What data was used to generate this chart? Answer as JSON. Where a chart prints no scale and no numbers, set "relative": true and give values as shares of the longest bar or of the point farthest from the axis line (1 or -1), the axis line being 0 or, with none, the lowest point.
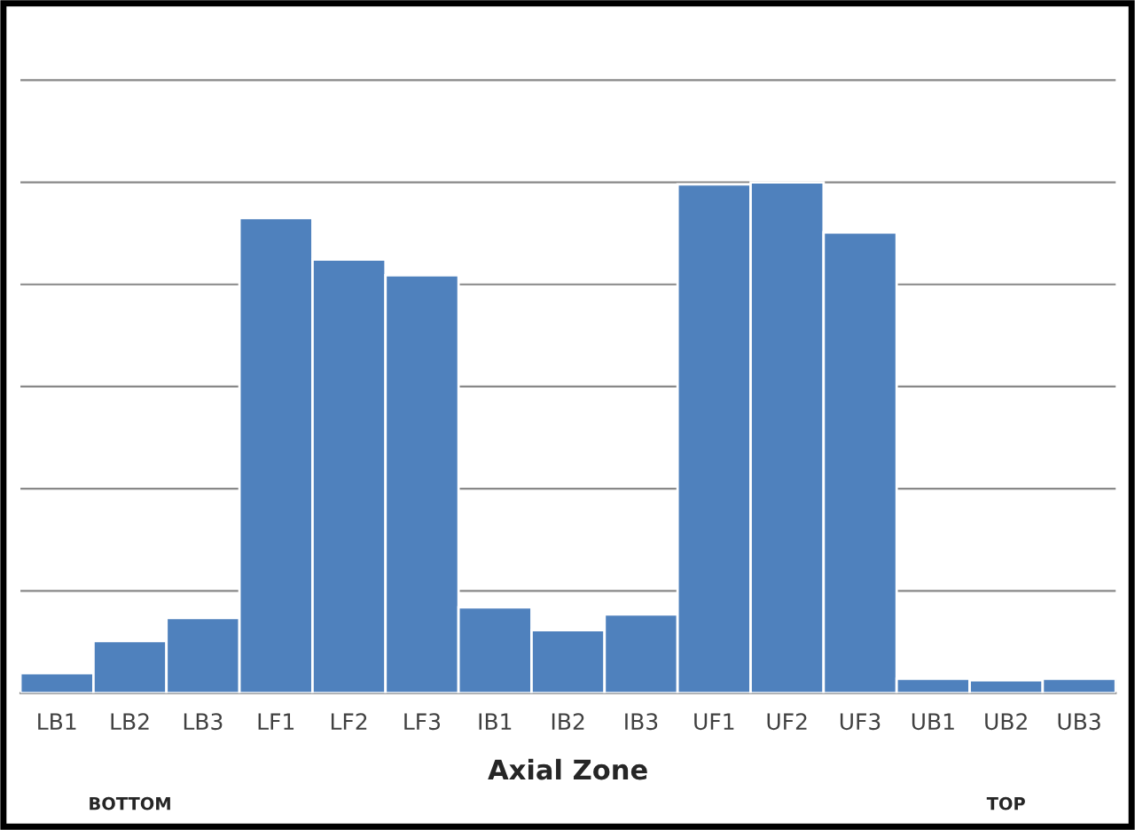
{
  "chart_data": {
    "type": "bar",
    "relative": true,
    "xlabel": "Axial Zone",
    "categories": [
      "LB1",
      "LB2",
      "LB3",
      "LF1",
      "LF2",
      "LF3",
      "IB1",
      "IB2",
      "IB3",
      "UF1",
      "UF2",
      "UF3",
      "UB1",
      "UB2",
      "UB3"
    ],
    "values": [
      0.039,
      0.102,
      0.147,
      0.93,
      0.849,
      0.818,
      0.168,
      0.123,
      0.154,
      0.996,
      1,
      0.902,
      0.028,
      0.025,
      0.028
    ],
    "color": "#4f81bd",
    "grid": "y",
    "legend": false,
    "annotations": [
      "BOTTOM",
      "TOP"
    ]
  }
}
